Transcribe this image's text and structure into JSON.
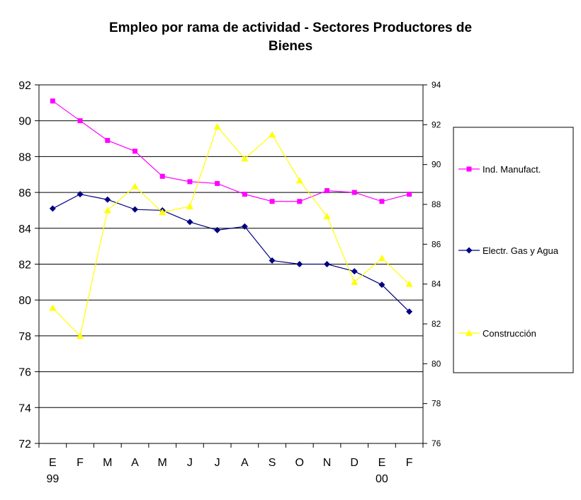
{
  "chart_data": {
    "type": "line",
    "title": [
      "Empleo por rama de actividad - Sectores Productores de",
      "Bienes"
    ],
    "categories": [
      "E",
      "F",
      "M",
      "A",
      "M",
      "J",
      "J",
      "A",
      "S",
      "O",
      "N",
      "D",
      "E",
      "F"
    ],
    "year_labels": [
      {
        "index": 0,
        "label": "99"
      },
      {
        "index": 12,
        "label": "00"
      }
    ],
    "y_left": {
      "min": 72,
      "max": 92,
      "step": 2,
      "grid": true
    },
    "y_right": {
      "min": 76,
      "max": 94,
      "step": 2
    },
    "legend_position": "right",
    "series": [
      {
        "name": "Ind. Manufact.",
        "axis": "left",
        "color": "#ff00ff",
        "marker": "square",
        "values": [
          91.1,
          90.0,
          88.9,
          88.3,
          86.9,
          86.6,
          86.5,
          85.9,
          85.5,
          85.5,
          86.1,
          86.0,
          85.5,
          85.9
        ]
      },
      {
        "name": "Electr. Gas y Agua",
        "axis": "left",
        "color": "#000080",
        "marker": "diamond",
        "values": [
          85.1,
          85.9,
          85.6,
          85.05,
          85.0,
          84.35,
          83.9,
          84.1,
          82.2,
          82.0,
          82.0,
          81.6,
          80.85,
          79.35
        ]
      },
      {
        "name": "Construcción",
        "axis": "right",
        "color": "#ffff00",
        "marker": "triangle",
        "values": [
          82.8,
          81.4,
          87.7,
          88.9,
          87.6,
          87.9,
          91.9,
          90.3,
          91.5,
          89.2,
          87.4,
          84.1,
          85.3,
          84.0
        ]
      }
    ]
  }
}
